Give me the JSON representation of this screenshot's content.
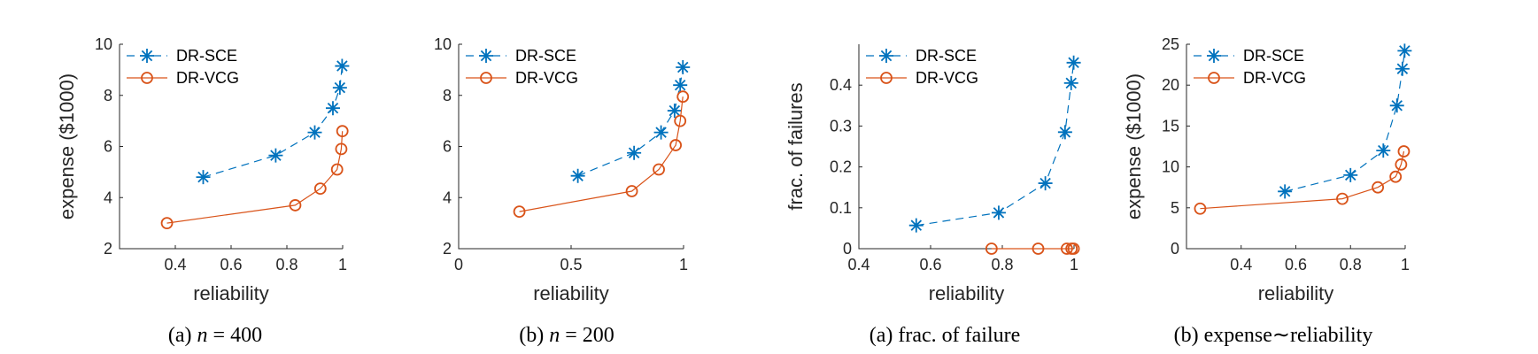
{
  "colors": {
    "blue": "#0072BD",
    "orange": "#D95319",
    "axis": "#262626"
  },
  "legend": {
    "entries": [
      "DR-SCE",
      "DR-VCG"
    ],
    "placement": "top-left"
  },
  "captions": [
    {
      "prefix": "(a) ",
      "var": "n",
      "eq": " = 400",
      "text": "(a) n = 400"
    },
    {
      "prefix": "(b) ",
      "var": "n",
      "eq": " = 200",
      "text": "(b) n = 200"
    },
    {
      "text": "(a) frac. of failure"
    },
    {
      "text": "(b) expense∼reliability"
    }
  ],
  "chart_data": [
    {
      "type": "line",
      "caption": "(a) n = 400",
      "xlabel": "reliability",
      "ylabel": "expense ($1000)",
      "xlim": [
        0.2,
        1.0
      ],
      "ylim": [
        2,
        10
      ],
      "xticks": [
        0.4,
        0.6,
        0.8,
        1
      ],
      "xtick_labels": [
        "0.4",
        "0.6",
        "0.8",
        "1"
      ],
      "yticks": [
        2,
        4,
        6,
        8,
        10
      ],
      "ytick_labels": [
        "2",
        "4",
        "6",
        "8",
        "10"
      ],
      "series": [
        {
          "name": "DR-SCE",
          "marker": "star",
          "style": "dashed",
          "x": [
            0.5,
            0.76,
            0.9,
            0.965,
            0.99,
            0.998
          ],
          "y": [
            4.8,
            5.65,
            6.55,
            7.5,
            8.3,
            9.15
          ]
        },
        {
          "name": "DR-VCG",
          "marker": "circle",
          "style": "solid",
          "x": [
            0.37,
            0.83,
            0.92,
            0.98,
            0.995,
            0.999
          ],
          "y": [
            3.0,
            3.7,
            4.35,
            5.1,
            5.9,
            6.6
          ]
        }
      ]
    },
    {
      "type": "line",
      "caption": "(b) n = 200",
      "xlabel": "reliability",
      "ylabel": "",
      "xlim": [
        0,
        1.0
      ],
      "ylim": [
        2,
        10
      ],
      "xticks": [
        0,
        0.5,
        1
      ],
      "xtick_labels": [
        "0",
        "0.5",
        "1"
      ],
      "yticks": [
        2,
        4,
        6,
        8,
        10
      ],
      "ytick_labels": [
        "2",
        "4",
        "6",
        "8",
        "10"
      ],
      "series": [
        {
          "name": "DR-SCE",
          "marker": "star",
          "style": "dashed",
          "x": [
            0.53,
            0.78,
            0.9,
            0.96,
            0.985,
            0.997
          ],
          "y": [
            4.85,
            5.75,
            6.55,
            7.4,
            8.4,
            9.1
          ]
        },
        {
          "name": "DR-VCG",
          "marker": "circle",
          "style": "solid",
          "x": [
            0.27,
            0.77,
            0.89,
            0.965,
            0.985,
            0.997
          ],
          "y": [
            3.45,
            4.25,
            5.1,
            6.05,
            7.0,
            7.95
          ]
        }
      ]
    },
    {
      "type": "line",
      "caption": "(a) frac. of failure",
      "xlabel": "reliability",
      "ylabel": "frac. of failures",
      "xlim": [
        0.4,
        1.0
      ],
      "ylim": [
        0,
        0.5
      ],
      "xticks": [
        0.4,
        0.6,
        0.8,
        1
      ],
      "xtick_labels": [
        "0.4",
        "0.6",
        "0.8",
        "1"
      ],
      "yticks": [
        0,
        0.1,
        0.2,
        0.3,
        0.4
      ],
      "ytick_labels": [
        "0",
        "0.1",
        "0.2",
        "0.3",
        "0.4"
      ],
      "series": [
        {
          "name": "DR-SCE",
          "marker": "star",
          "style": "dashed",
          "x": [
            0.56,
            0.79,
            0.92,
            0.975,
            0.992,
            0.999
          ],
          "y": [
            0.057,
            0.088,
            0.16,
            0.285,
            0.405,
            0.455
          ]
        },
        {
          "name": "DR-VCG",
          "marker": "circle",
          "style": "solid",
          "x": [
            0.77,
            0.9,
            0.98,
            0.993,
            0.999
          ],
          "y": [
            0,
            0,
            0,
            0,
            0
          ]
        }
      ]
    },
    {
      "type": "line",
      "caption": "(b) expense∼reliability",
      "xlabel": "reliability",
      "ylabel": "expense ($1000)",
      "xlim": [
        0.2,
        1.0
      ],
      "ylim": [
        0,
        25
      ],
      "xticks": [
        0.4,
        0.6,
        0.8,
        1
      ],
      "xtick_labels": [
        "0.4",
        "0.6",
        "0.8",
        "1"
      ],
      "yticks": [
        0,
        5,
        10,
        15,
        20,
        25
      ],
      "ytick_labels": [
        "0",
        "5",
        "10",
        "15",
        "20",
        "25"
      ],
      "series": [
        {
          "name": "DR-SCE",
          "marker": "star",
          "style": "dashed",
          "x": [
            0.56,
            0.8,
            0.92,
            0.97,
            0.99,
            0.998
          ],
          "y": [
            7.0,
            9.0,
            12.0,
            17.5,
            22.0,
            24.2
          ]
        },
        {
          "name": "DR-VCG",
          "marker": "circle",
          "style": "solid",
          "x": [
            0.25,
            0.77,
            0.9,
            0.965,
            0.985,
            0.995
          ],
          "y": [
            4.9,
            6.1,
            7.5,
            8.8,
            10.3,
            11.9
          ]
        }
      ]
    }
  ]
}
